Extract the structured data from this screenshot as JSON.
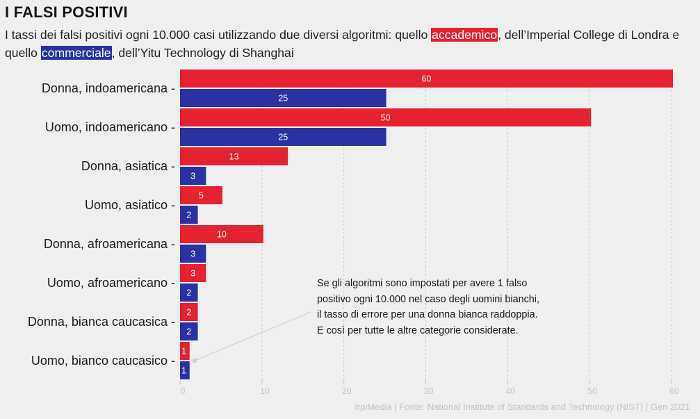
{
  "header": {
    "title": "I FALSI POSITIVI",
    "subtitle_parts": {
      "before_red": "I tassi dei falsi positivi ogni 10.000 casi utilizzando due diversi algoritmi: quello ",
      "red_term": "accademico",
      "between": ", dell’Imperial College di Londra e quello ",
      "blue_term": "commerciale",
      "after_blue": ", dell’Yitu Technology di Shanghai"
    }
  },
  "annotation": {
    "text": "Se gli algoritmi sono impostati per avere 1 falso positivo ogni 10.000 nel caso degli uomini bianchi, il tasso di errore per una donna bianca raddoppia. E così per tutte le altre categorie considerate.",
    "points_to_category": "Uomo, bianco caucasico"
  },
  "footer": {
    "source": "IrpiMedia | Fonte: National Institute of Standards and Technology (NIST) | Gen 2021"
  },
  "colors": {
    "accademico": "#e5222f",
    "commerciale": "#2a31a0",
    "background": "#efefef",
    "gridline": "#c9c9c9",
    "tick_text": "#c6c6c6"
  },
  "chart_data": {
    "type": "bar",
    "orientation": "horizontal",
    "title": "I FALSI POSITIVI",
    "xlabel": "",
    "ylabel": "",
    "xlim": [
      0,
      60
    ],
    "xticks": [
      0,
      10,
      20,
      30,
      40,
      50,
      60
    ],
    "grid": "vertical dashed",
    "categories": [
      "Donna, indoamericana",
      "Uomo, indoamericano",
      "Donna, asiatica",
      "Uomo, asiatico",
      "Donna, afroamericana",
      "Uomo, afroamericano",
      "Donna, bianca caucasica",
      "Uomo, bianco caucasico"
    ],
    "series": [
      {
        "name": "accademico",
        "color": "#e5222f",
        "values": [
          60,
          50,
          13,
          5,
          10,
          3,
          2,
          1
        ]
      },
      {
        "name": "commerciale",
        "color": "#2a31a0",
        "values": [
          25,
          25,
          3,
          2,
          3,
          2,
          2,
          1
        ]
      }
    ],
    "data_labels": true
  }
}
